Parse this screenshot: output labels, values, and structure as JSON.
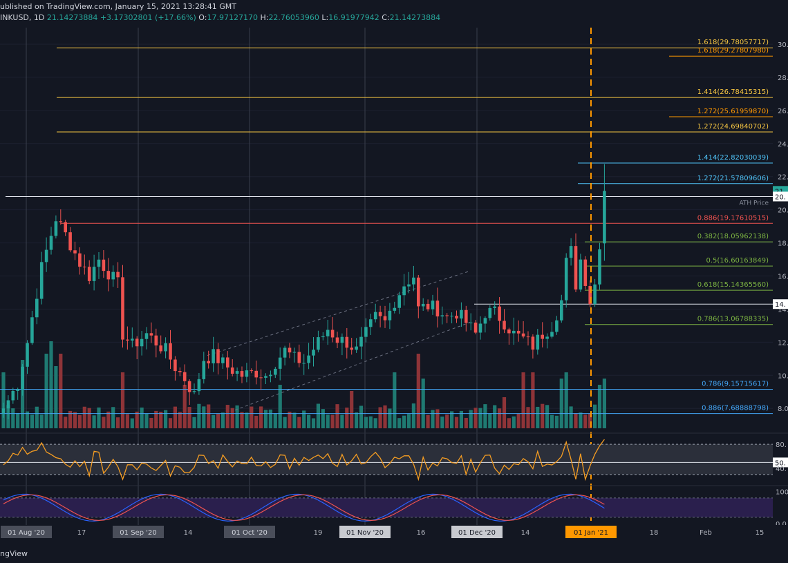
{
  "header": {
    "published": "ublished on TradingView.com, January 15, 2021 13:28:41 GMT",
    "symbol": "INKUSD, 1D",
    "last": "21.14273884",
    "change": "+3.17302801 (+17.66%)",
    "o_label": "O:",
    "o_val": "17.97127170",
    "h_label": "H:",
    "h_val": "22.76053960",
    "l_label": "L:",
    "l_val": "16.91977942",
    "c_label": "C:",
    "c_val": "21.14273884"
  },
  "footer": {
    "brand": "ngView"
  },
  "colors": {
    "background": "#131722",
    "up": "#26a69a",
    "down": "#ef5350",
    "vol_up": "#1f7a72",
    "vol_down": "#8f3438",
    "rsi": "#f59d22",
    "stoch_k": "#2962ff",
    "stoch_d": "#ef5350",
    "stoch_band": "#2a1f4d"
  },
  "chart_data": {
    "type": "candlestick",
    "y_ticks": [
      "30.",
      "28.",
      "26.",
      "24.",
      "22.",
      "20.",
      "18.",
      "16.",
      "14.",
      "12.",
      "10.",
      "8.0"
    ],
    "x_ticks": [
      {
        "label": "01 Aug '20",
        "boxed": true
      },
      {
        "label": "17",
        "boxed": false
      },
      {
        "label": "01 Sep '20",
        "boxed": true
      },
      {
        "label": "14",
        "boxed": false
      },
      {
        "label": "01 Oct '20",
        "boxed": true
      },
      {
        "label": "19",
        "boxed": false
      },
      {
        "label": "01 Nov '20",
        "boxed": true,
        "light": true
      },
      {
        "label": "16",
        "boxed": false
      },
      {
        "label": "01 Dec '20",
        "boxed": true,
        "light": true
      },
      {
        "label": "14",
        "boxed": false
      },
      {
        "label": "01 Jan '21",
        "boxed": true,
        "orange": true
      },
      {
        "label": "18",
        "boxed": false
      },
      {
        "label": "Feb",
        "boxed": false
      },
      {
        "label": "15",
        "boxed": false
      }
    ],
    "fib_levels": [
      {
        "label": "1.618(29.78057717)",
        "value": 29.78,
        "color": "#f5c542"
      },
      {
        "label": "1.618(29.27807980)",
        "value": 29.28,
        "color": "#ff9800"
      },
      {
        "label": "1.414(26.78415315)",
        "value": 26.78,
        "color": "#f5c542"
      },
      {
        "label": "1.272(25.61959870)",
        "value": 25.62,
        "color": "#ff9800"
      },
      {
        "label": "1.272(24.69840702)",
        "value": 24.7,
        "color": "#f5c542"
      },
      {
        "label": "1.414(22.82030039)",
        "value": 22.82,
        "color": "#4fc3f7"
      },
      {
        "label": "1.272(21.57809606)",
        "value": 21.58,
        "color": "#4fc3f7"
      },
      {
        "label": "0.886(19.17610515)",
        "value": 19.18,
        "color": "#ef5350"
      },
      {
        "label": "0.382(18.05962138)",
        "value": 18.06,
        "color": "#7cb342"
      },
      {
        "label": "0.5(16.60163849)",
        "value": 16.6,
        "color": "#7cb342"
      },
      {
        "label": "0.618(15.14365560)",
        "value": 15.14,
        "color": "#7cb342"
      },
      {
        "label": "0.786(13.06788335)",
        "value": 13.07,
        "color": "#7cb342"
      },
      {
        "label": "0.786(9.15715617)",
        "value": 9.16,
        "color": "#42a5f5"
      },
      {
        "label": "0.886(7.68888798)",
        "value": 7.69,
        "color": "#42a5f5"
      }
    ],
    "ath": {
      "label": "ATH Price",
      "value": 20.8
    },
    "support": {
      "value": 14.3
    },
    "price_badges": [
      {
        "text": "21.",
        "value": 21.14,
        "color": "#26a69a"
      },
      {
        "text": "20.",
        "value": 20.8,
        "color": "#ffffff"
      },
      {
        "text": "14.",
        "value": 14.3,
        "color": "#ffffff"
      }
    ],
    "rsi": {
      "ticks": [
        "80.",
        "50.",
        "40."
      ]
    },
    "stoch": {
      "ticks": [
        "100",
        "0.0"
      ]
    },
    "path": [
      [
        0,
        8.0
      ],
      [
        3,
        9.5
      ],
      [
        5,
        12.0
      ],
      [
        8,
        16.5
      ],
      [
        11,
        19.5
      ],
      [
        13,
        18.5
      ],
      [
        16,
        16.8
      ],
      [
        18,
        16.0
      ],
      [
        20,
        17.0
      ],
      [
        22,
        16.2
      ],
      [
        24,
        15.5
      ],
      [
        25,
        12.5
      ],
      [
        27,
        11.8
      ],
      [
        30,
        12.5
      ],
      [
        32,
        12.0
      ],
      [
        34,
        11.5
      ],
      [
        36,
        10.5
      ],
      [
        38,
        9.8
      ],
      [
        40,
        8.8
      ],
      [
        42,
        11.0
      ],
      [
        44,
        11.2
      ],
      [
        47,
        10.5
      ],
      [
        50,
        10.0
      ],
      [
        53,
        10.2
      ],
      [
        55,
        10.0
      ],
      [
        57,
        10.8
      ],
      [
        59,
        11.5
      ],
      [
        61,
        11.0
      ],
      [
        63,
        10.8
      ],
      [
        66,
        12.0
      ],
      [
        68,
        12.8
      ],
      [
        70,
        12.2
      ],
      [
        72,
        12.0
      ],
      [
        74,
        11.5
      ],
      [
        76,
        12.5
      ],
      [
        78,
        13.5
      ],
      [
        80,
        13.2
      ],
      [
        82,
        14.5
      ],
      [
        84,
        15.5
      ],
      [
        86,
        16.0
      ],
      [
        87,
        14.0
      ],
      [
        89,
        14.2
      ],
      [
        91,
        14.0
      ],
      [
        93,
        13.5
      ],
      [
        95,
        13.8
      ],
      [
        97,
        13.2
      ],
      [
        99,
        12.5
      ],
      [
        101,
        13.8
      ],
      [
        103,
        13.8
      ],
      [
        105,
        13.2
      ],
      [
        107,
        12.5
      ],
      [
        109,
        12.2
      ],
      [
        111,
        11.8
      ],
      [
        113,
        12.5
      ],
      [
        115,
        13.0
      ],
      [
        117,
        14.5
      ],
      [
        118,
        16.8
      ],
      [
        119,
        17.5
      ],
      [
        120,
        15.5
      ],
      [
        121,
        17.0
      ],
      [
        122,
        15.8
      ],
      [
        123,
        14.5
      ],
      [
        124,
        15.5
      ],
      [
        125,
        18.0
      ],
      [
        126,
        21.14
      ]
    ],
    "vol_spikes": {
      "0": 0.45,
      "4": 0.55,
      "9": 0.6,
      "10": 0.7,
      "11": 0.5,
      "12": 0.6,
      "25": 0.45,
      "38": 0.35,
      "58": 0.35,
      "73": 0.3,
      "82": 0.45,
      "87": 0.6,
      "88": 0.4,
      "105": 0.25,
      "109": 0.45,
      "111": 0.45,
      "117": 0.4,
      "118": 0.45,
      "125": 0.35,
      "126": 0.4
    }
  }
}
